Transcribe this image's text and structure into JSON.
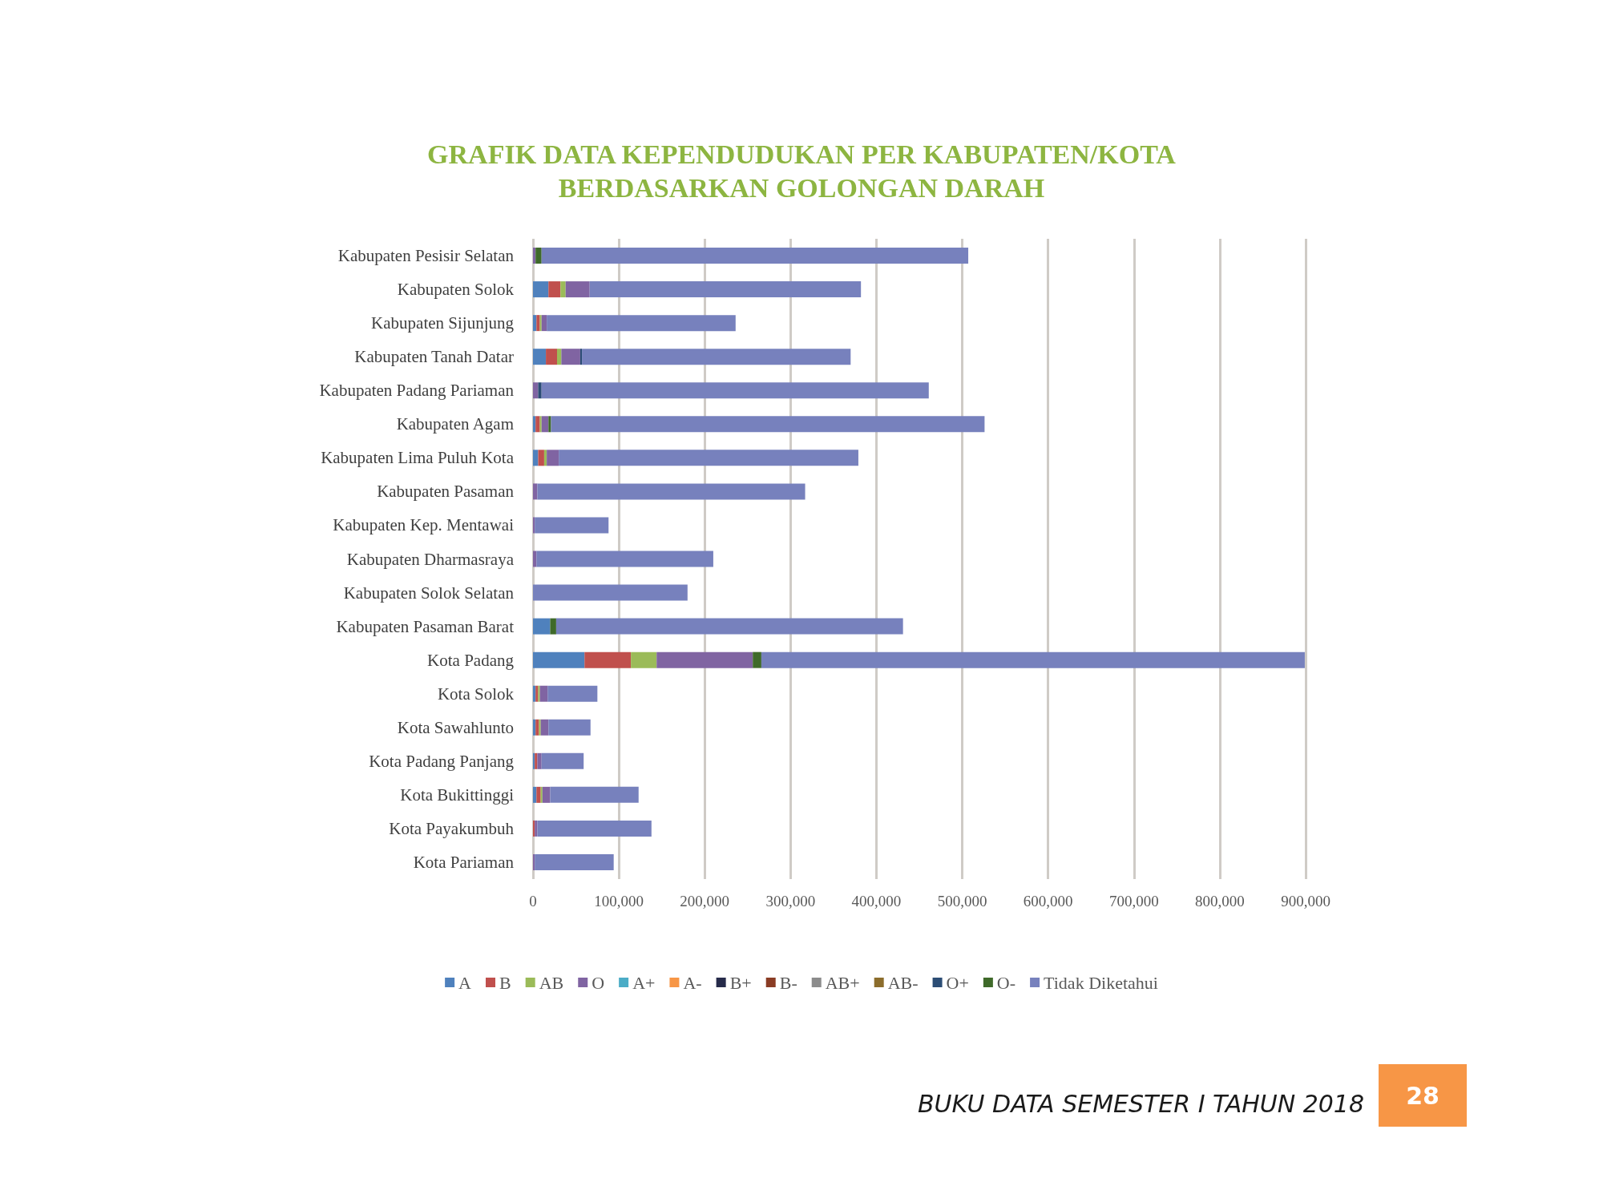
{
  "chart_data": {
    "type": "bar",
    "orientation": "horizontal",
    "stacked": true,
    "title": "GRAFIK DATA KEPENDUDUKAN PER KABUPATEN/KOTA\nBERDASARKAN GOLONGAN DARAH",
    "categories": [
      "Kabupaten Pesisir Selatan",
      "Kabupaten Solok",
      "Kabupaten Sijunjung",
      "Kabupaten Tanah Datar",
      "Kabupaten Padang Pariaman",
      "Kabupaten Agam",
      "Kabupaten Lima Puluh Kota",
      "Kabupaten Pasaman",
      "Kabupaten Kep. Mentawai",
      "Kabupaten Dharmasraya",
      "Kabupaten Solok Selatan",
      "Kabupaten Pasaman Barat",
      "Kota Padang",
      "Kota Solok",
      "Kota Sawahlunto",
      "Kota Padang Panjang",
      "Kota Bukittinggi",
      "Kota Payakumbuh",
      "Kota Pariaman"
    ],
    "series": [
      {
        "name": "A",
        "color": "#4f81bd",
        "values": [
          0,
          18000,
          4000,
          15000,
          0,
          3000,
          6000,
          0,
          0,
          0,
          0,
          20000,
          60000,
          3000,
          3000,
          2000,
          4000,
          0,
          0
        ]
      },
      {
        "name": "B",
        "color": "#c0504d",
        "values": [
          0,
          14000,
          4000,
          13000,
          0,
          5000,
          7000,
          0,
          0,
          0,
          0,
          0,
          54000,
          3000,
          4000,
          3000,
          5000,
          2000,
          0
        ]
      },
      {
        "name": "AB",
        "color": "#9bbb59",
        "values": [
          0,
          6000,
          2000,
          5000,
          0,
          2000,
          3000,
          0,
          0,
          0,
          0,
          0,
          30000,
          2000,
          2000,
          0,
          2000,
          0,
          0
        ]
      },
      {
        "name": "O",
        "color": "#8064a2",
        "values": [
          3000,
          28000,
          6000,
          22000,
          6000,
          8000,
          14000,
          5000,
          2000,
          4000,
          0,
          0,
          112000,
          9000,
          9000,
          5000,
          9000,
          3000,
          2000
        ]
      },
      {
        "name": "A+",
        "color": "#4bacc6",
        "values": [
          0,
          0,
          0,
          0,
          0,
          0,
          0,
          0,
          0,
          0,
          0,
          0,
          0,
          0,
          0,
          0,
          0,
          0,
          0
        ]
      },
      {
        "name": "A-",
        "color": "#f79646",
        "values": [
          0,
          0,
          0,
          0,
          0,
          0,
          0,
          0,
          0,
          0,
          0,
          0,
          0,
          0,
          0,
          0,
          0,
          0,
          0
        ]
      },
      {
        "name": "B+",
        "color": "#262b4a",
        "values": [
          0,
          0,
          0,
          0,
          0,
          0,
          0,
          0,
          0,
          0,
          0,
          0,
          0,
          0,
          0,
          0,
          0,
          0,
          0
        ]
      },
      {
        "name": "B-",
        "color": "#8a3c24",
        "values": [
          0,
          0,
          0,
          0,
          0,
          0,
          0,
          0,
          0,
          0,
          0,
          0,
          0,
          0,
          0,
          0,
          0,
          0,
          0
        ]
      },
      {
        "name": "AB+",
        "color": "#8c8c8c",
        "values": [
          0,
          0,
          0,
          0,
          0,
          0,
          0,
          0,
          0,
          0,
          0,
          0,
          0,
          0,
          0,
          0,
          0,
          0,
          0
        ]
      },
      {
        "name": "AB-",
        "color": "#8c6d2c",
        "values": [
          0,
          0,
          0,
          0,
          0,
          0,
          0,
          0,
          0,
          0,
          0,
          0,
          0,
          0,
          0,
          0,
          0,
          0,
          0
        ]
      },
      {
        "name": "O+",
        "color": "#2c4d75",
        "values": [
          0,
          0,
          0,
          2000,
          4000,
          0,
          0,
          0,
          0,
          0,
          0,
          0,
          0,
          0,
          0,
          0,
          0,
          0,
          0
        ]
      },
      {
        "name": "O-",
        "color": "#3f6a2a",
        "values": [
          7000,
          0,
          0,
          0,
          0,
          3000,
          0,
          0,
          0,
          0,
          0,
          7000,
          10000,
          0,
          0,
          0,
          0,
          0,
          0
        ]
      },
      {
        "name": "Tidak Diketahui",
        "color": "#7781bd",
        "values": [
          497000,
          316000,
          220000,
          313000,
          451000,
          505000,
          349000,
          312000,
          86000,
          206000,
          180000,
          404000,
          633000,
          58000,
          49000,
          49000,
          103000,
          133000,
          92000
        ]
      }
    ],
    "xlim": [
      0,
      900000
    ],
    "xticks": [
      0,
      {
        "value": 100000,
        "label": "100,000"
      },
      {
        "value": 200000,
        "label": "200,000"
      },
      {
        "value": 300000,
        "label": "300,000"
      },
      {
        "value": 400000,
        "label": "400,000"
      },
      {
        "value": 500000,
        "label": "500,000"
      },
      {
        "value": 600000,
        "label": "600,000"
      },
      {
        "value": 700000,
        "label": "700,000"
      },
      {
        "value": 800000,
        "label": "800,000"
      },
      {
        "value": 900000,
        "label": "900,000"
      }
    ],
    "grid": "x",
    "legend": "bottom",
    "annotations": [
      "BUKU DATA SEMESTER I TAHUN 2018",
      "28"
    ]
  }
}
